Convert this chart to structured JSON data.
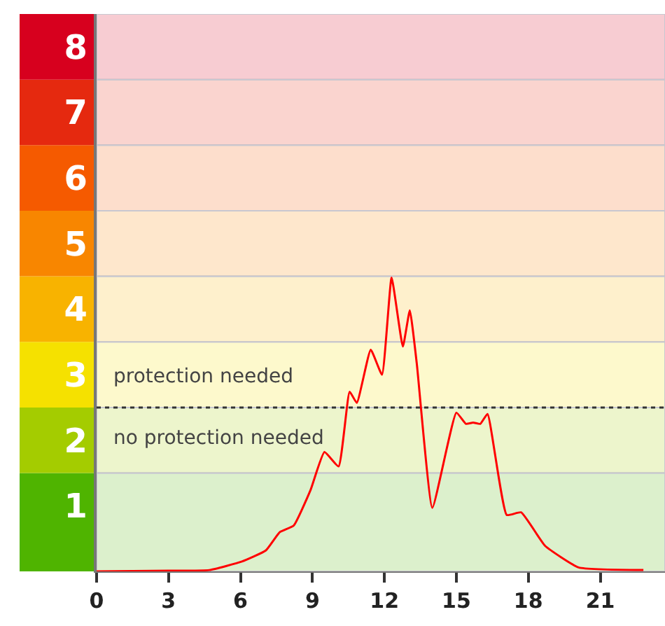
{
  "chart_data": {
    "type": "line",
    "grid": false,
    "marker": "none",
    "line_style": "solid",
    "x": [
      0,
      3,
      4.7,
      6.06,
      7.06,
      7.64,
      8.22,
      8.92,
      9.5,
      10.09,
      10.55,
      10.85,
      11.43,
      11.9,
      12.3,
      12.77,
      13.06,
      13.35,
      14.0,
      15.0,
      15.4,
      15.7,
      16.0,
      16.3,
      17.1,
      17.7,
      18.7,
      20.1,
      22.8
    ],
    "series": [
      {
        "color": "#ff0000",
        "values": [
          0,
          0.01,
          0.02,
          0.15,
          0.32,
          0.6,
          0.7,
          1.24,
          1.82,
          1.6,
          2.74,
          2.57,
          3.38,
          3.0,
          4.48,
          3.43,
          3.98,
          3.17,
          0.97,
          2.42,
          2.25,
          2.27,
          2.25,
          2.4,
          0.86,
          0.9,
          0.39,
          0.06,
          0.02
        ]
      }
    ],
    "xlim": [
      0,
      23.7
    ],
    "xticks": [
      0,
      3,
      6,
      9,
      12,
      15,
      18,
      21
    ],
    "ylim": [
      0,
      8.5
    ],
    "yticks": [
      1,
      2,
      3,
      4,
      5,
      6,
      7,
      8
    ],
    "bands": [
      {
        "axis": "y",
        "from": 0,
        "to": 1.5,
        "color": "#4fb400"
      },
      {
        "axis": "y",
        "from": 1.5,
        "to": 2.5,
        "color": "#a4cc00"
      },
      {
        "axis": "y",
        "from": 2.5,
        "to": 3.5,
        "color": "#f5e100"
      },
      {
        "axis": "y",
        "from": 3.5,
        "to": 4.5,
        "color": "#f8b300"
      },
      {
        "axis": "y",
        "from": 4.5,
        "to": 5.5,
        "color": "#f88600"
      },
      {
        "axis": "y",
        "from": 5.5,
        "to": 6.5,
        "color": "#f55a00"
      },
      {
        "axis": "y",
        "from": 6.5,
        "to": 7.5,
        "color": "#e5290f"
      },
      {
        "axis": "y",
        "from": 7.5,
        "to": 8.5,
        "color": "#d7001e"
      }
    ],
    "ref_lines": [
      {
        "axis": "y",
        "value": 2.5,
        "color": "#333333",
        "line_style": "dotted"
      }
    ],
    "annotations": [
      "protection needed",
      "no protection needed"
    ]
  }
}
